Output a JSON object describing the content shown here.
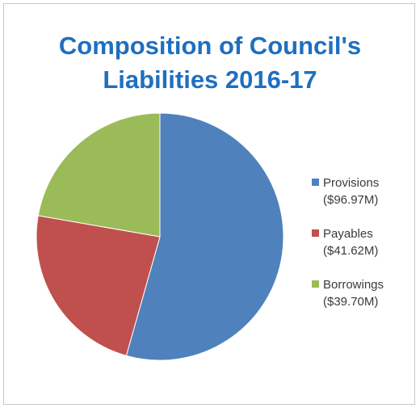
{
  "chart_data": {
    "type": "pie",
    "title_lines": [
      "Composition of Council's",
      "Liabilities 2016-17"
    ],
    "slices": [
      {
        "name": "Provisions",
        "label": "($96.97M)",
        "value": 96.97,
        "color": "#4f81bd"
      },
      {
        "name": "Payables",
        "label": "($41.62M)",
        "value": 41.62,
        "color": "#c0504d"
      },
      {
        "name": "Borrowings",
        "label": "($39.70M)",
        "value": 39.7,
        "color": "#9bbb59"
      }
    ],
    "legend_position": "right"
  }
}
